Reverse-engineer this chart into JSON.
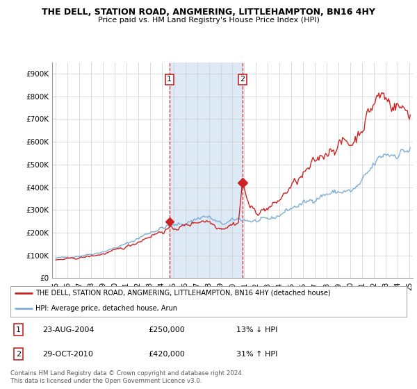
{
  "title": "THE DELL, STATION ROAD, ANGMERING, LITTLEHAMPTON, BN16 4HY",
  "subtitle": "Price paid vs. HM Land Registry's House Price Index (HPI)",
  "legend_line1": "THE DELL, STATION ROAD, ANGMERING, LITTLEHAMPTON, BN16 4HY (detached house)",
  "legend_line2": "HPI: Average price, detached house, Arun",
  "annotation1": {
    "num": "1",
    "date": "23-AUG-2004",
    "price": "£250,000",
    "pct": "13% ↓ HPI"
  },
  "annotation2": {
    "num": "2",
    "date": "29-OCT-2010",
    "price": "£420,000",
    "pct": "31% ↑ HPI"
  },
  "footer": "Contains HM Land Registry data © Crown copyright and database right 2024.\nThis data is licensed under the Open Government Licence v3.0.",
  "hpi_color": "#7dadd4",
  "price_color": "#cc2222",
  "dashed_color": "#cc2222",
  "ylim": [
    0,
    950000
  ],
  "yticks": [
    0,
    100000,
    200000,
    300000,
    400000,
    500000,
    600000,
    700000,
    800000,
    900000
  ],
  "ytick_labels": [
    "£0",
    "£100K",
    "£200K",
    "£300K",
    "£400K",
    "£500K",
    "£600K",
    "£700K",
    "£800K",
    "£900K"
  ],
  "sale1_x": 2004.65,
  "sale1_y": 250000,
  "sale2_x": 2010.83,
  "sale2_y": 420000,
  "bg_color": "#ddeaf5",
  "bg_x1": 2004.65,
  "bg_x2": 2010.83,
  "xlim_left": 1994.7,
  "xlim_right": 2025.3,
  "seed": 42
}
